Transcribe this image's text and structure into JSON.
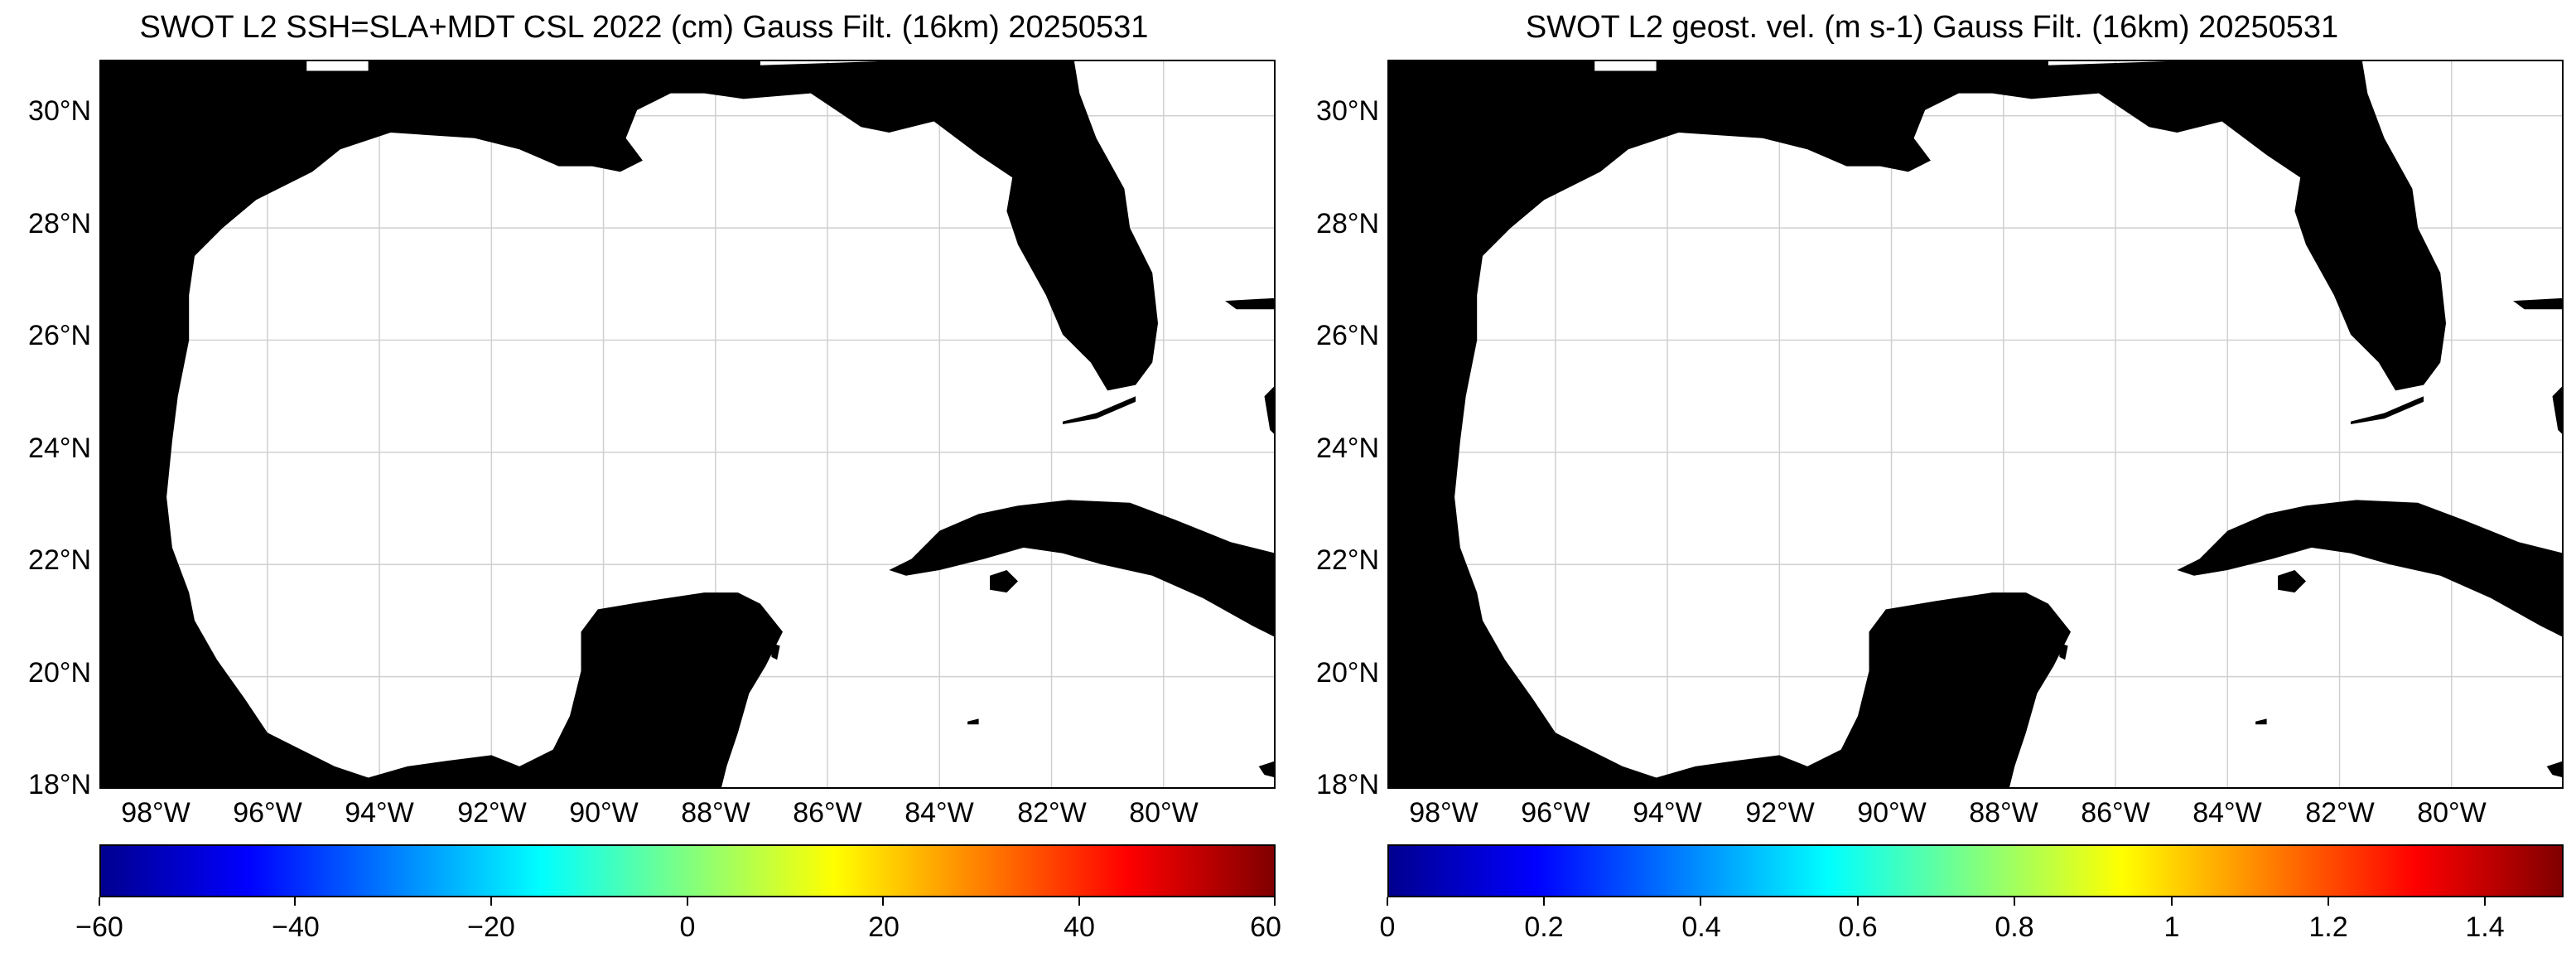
{
  "panels": [
    {
      "title": "SWOT L2 SSH=SLA+MDT CSL 2022 (cm) Gauss Filt. (16km) 20250531",
      "colorbar": {
        "ticks": [
          "−60",
          "−40",
          "−20",
          "0",
          "20",
          "40",
          "60"
        ],
        "range": [
          -60,
          60
        ],
        "colormap": "jet"
      }
    },
    {
      "title": "SWOT L2 geost. vel. (m s-1) Gauss Filt. (16km) 20250531",
      "colorbar": {
        "ticks": [
          "0",
          "0.2",
          "0.4",
          "0.6",
          "0.8",
          "1",
          "1.2",
          "1.4"
        ],
        "range": [
          0,
          1.5
        ],
        "colormap": "jet"
      }
    }
  ],
  "map": {
    "lat_labels": [
      "30°N",
      "28°N",
      "26°N",
      "24°N",
      "22°N",
      "20°N",
      "18°N"
    ],
    "lon_labels": [
      "98°W",
      "96°W",
      "94°W",
      "92°W",
      "90°W",
      "88°W",
      "86°W",
      "84°W",
      "82°W",
      "80°W"
    ],
    "lon_range": [
      -99.0,
      -78.0
    ],
    "lat_range": [
      18.0,
      31.0
    ],
    "land_color": "#000000",
    "ocean_color": "#ffffff",
    "grid_color": "#d0d0d0"
  }
}
